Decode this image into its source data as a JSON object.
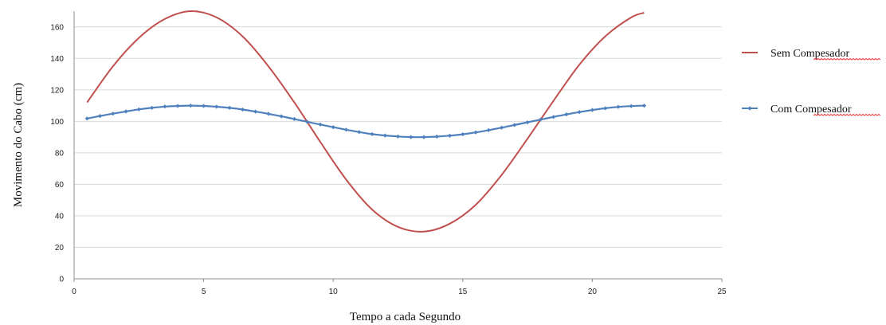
{
  "chart_data": {
    "type": "line",
    "title": "",
    "xlabel": "Tempo a cada Segundo",
    "ylabel": "Movimento do Cabo (cm)",
    "xlim": [
      0,
      25
    ],
    "ylim": [
      0,
      170
    ],
    "x_ticks": [
      0,
      5,
      10,
      15,
      20,
      25
    ],
    "y_ticks": [
      0,
      20,
      40,
      60,
      80,
      100,
      120,
      140,
      160
    ],
    "grid": "horizontal",
    "legend_position": "right",
    "series": [
      {
        "name": "Sem Compesador",
        "color": "#c0504d",
        "marker": "none",
        "x": [
          0.5,
          1.5,
          2.5,
          3.5,
          4.5,
          5.5,
          6.5,
          7.5,
          8.5,
          9.5,
          10.5,
          11.5,
          12.5,
          13.5,
          14.5,
          15.5,
          16.5,
          17.5,
          18.5,
          19.5,
          20.5,
          21.5,
          22.0
        ],
        "values": [
          112,
          135,
          153,
          165,
          170,
          166,
          154,
          135,
          112,
          87,
          63,
          44,
          33,
          30,
          35,
          47,
          66,
          89,
          113,
          136,
          154,
          166,
          169
        ]
      },
      {
        "name": "Com Compesador",
        "color": "#4f81bd",
        "marker": "diamond",
        "x": [
          0.5,
          1.0,
          1.5,
          2.0,
          2.5,
          3.0,
          3.5,
          4.0,
          4.5,
          5.0,
          5.5,
          6.0,
          6.5,
          7.0,
          7.5,
          8.0,
          8.5,
          9.0,
          9.5,
          10.0,
          10.5,
          11.0,
          11.5,
          12.0,
          12.5,
          13.0,
          13.5,
          14.0,
          14.5,
          15.0,
          15.5,
          16.0,
          16.5,
          17.0,
          17.5,
          18.0,
          18.5,
          19.0,
          19.5,
          20.0,
          20.5,
          21.0,
          21.5,
          22.0
        ],
        "values": [
          101.8,
          103.4,
          104.9,
          106.3,
          107.6,
          108.6,
          109.4,
          109.8,
          110.0,
          109.8,
          109.3,
          108.6,
          107.5,
          106.2,
          104.8,
          103.2,
          101.5,
          99.7,
          98.0,
          96.3,
          94.7,
          93.2,
          91.9,
          91.0,
          90.4,
          90.0,
          90.0,
          90.3,
          90.9,
          91.8,
          93.0,
          94.4,
          96.0,
          97.7,
          99.4,
          101.1,
          102.8,
          104.4,
          105.9,
          107.2,
          108.3,
          109.2,
          109.7,
          110.0
        ]
      }
    ]
  }
}
